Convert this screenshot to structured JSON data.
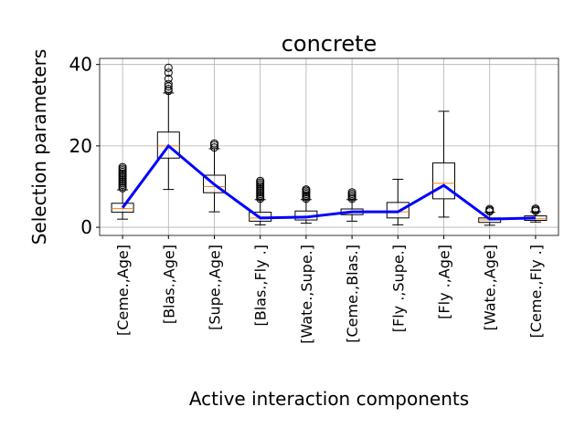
{
  "chart_data": {
    "type": "box",
    "title": "concrete",
    "xlabel": "Active interaction components",
    "ylabel": "Selection parameters",
    "ylim": [
      -2,
      41.5
    ],
    "yticks": [
      0,
      20,
      40
    ],
    "grid": true,
    "categories": [
      "[Ceme.,Age]",
      "[Blas.,Age]",
      "[Supe.,Age]",
      "[Blas.,Fly .]",
      "[Wate.,Supe.]",
      "[Ceme.,Blas.]",
      "[Fly .,Supe.]",
      "[Fly .,Age]",
      "[Wate.,Age]",
      "[Ceme.,Fly .]"
    ],
    "boxes": [
      {
        "whisker_low": 2,
        "q1": 3.7,
        "median": 4.6,
        "q3": 5.9,
        "whisker_high": 9.2,
        "fliers": [
          9.6,
          10.0,
          10.4,
          10.8,
          11.2,
          11.6,
          12.0,
          12.4,
          12.8,
          13.2,
          13.6,
          14.0,
          14.4,
          14.8
        ]
      },
      {
        "whisker_low": 9.3,
        "q1": 17,
        "median": 20,
        "q3": 23.4,
        "whisker_high": 33,
        "fliers": [
          33.5,
          34.0,
          34.6,
          35.2,
          36.5,
          38.0,
          39.2
        ]
      },
      {
        "whisker_low": 3.8,
        "q1": 8.5,
        "median": 10,
        "q3": 12.8,
        "whisker_high": 19.3,
        "fliers": [
          19.6,
          20.2,
          20.6
        ]
      },
      {
        "whisker_low": 0.6,
        "q1": 1.5,
        "median": 2.3,
        "q3": 3.7,
        "whisker_high": 6.8,
        "fliers": [
          7.0,
          7.4,
          7.8,
          8.2,
          8.6,
          9.0,
          9.4,
          9.8,
          10.2,
          10.6,
          11.0,
          11.4
        ]
      },
      {
        "whisker_low": 1,
        "q1": 1.8,
        "median": 2.6,
        "q3": 4,
        "whisker_high": 6.8,
        "fliers": [
          7.0,
          7.4,
          7.8,
          8.2,
          8.6,
          9.0,
          9.3
        ]
      },
      {
        "whisker_low": 1.5,
        "q1": 3.1,
        "median": 3.8,
        "q3": 4.5,
        "whisker_high": 6.8,
        "fliers": [
          7.0,
          7.4,
          7.8,
          8.2,
          8.6
        ]
      },
      {
        "whisker_low": 0.6,
        "q1": 2.3,
        "median": 3.8,
        "q3": 6.1,
        "whisker_high": 11.8,
        "fliers": []
      },
      {
        "whisker_low": 2.5,
        "q1": 7,
        "median": 10.8,
        "q3": 15.8,
        "whisker_high": 28.5,
        "fliers": []
      },
      {
        "whisker_low": 0.5,
        "q1": 1.2,
        "median": 1.8,
        "q3": 2.3,
        "whisker_high": 3.7,
        "fliers": [
          3.9,
          4.2,
          4.5
        ]
      },
      {
        "whisker_low": 1.3,
        "q1": 1.7,
        "median": 2.1,
        "q3": 2.8,
        "whisker_high": 3.8,
        "fliers": [
          4.0,
          4.3,
          4.6
        ]
      }
    ],
    "mean_line": {
      "color": "#0000ff",
      "values": [
        4.8,
        20,
        10.5,
        2.3,
        2.5,
        3.8,
        3.8,
        10.3,
        2.0,
        2.3
      ]
    },
    "colors": {
      "box": "#000000",
      "median": "#ff7f0e",
      "grid": "#b0b0b0"
    }
  }
}
